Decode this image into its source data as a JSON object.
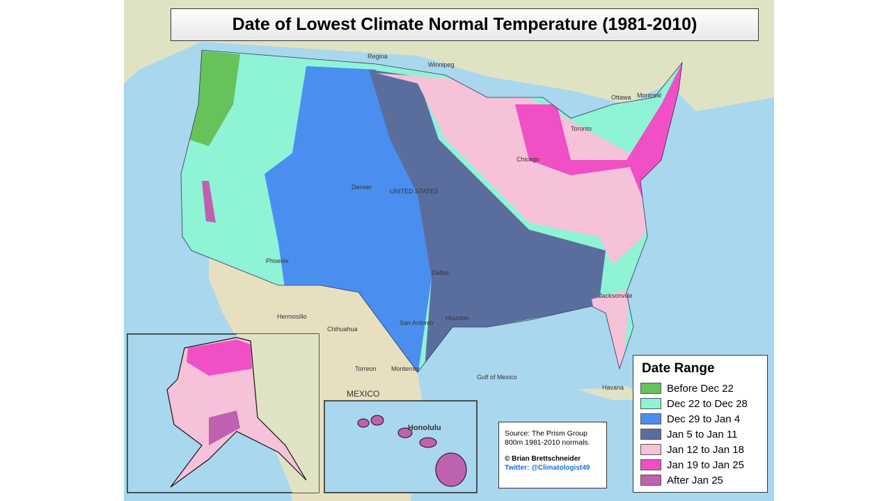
{
  "title": "Date of Lowest Climate Normal Temperature (1981-2010)",
  "legend": {
    "title": "Date Range",
    "items": [
      {
        "label": "Before Dec 22",
        "color": "#66c25a"
      },
      {
        "label": "Dec 22 to Dec 28",
        "color": "#8ff3d6"
      },
      {
        "label": "Dec 29 to Jan 4",
        "color": "#4a8ff0"
      },
      {
        "label": "Jan 5 to Jan 11",
        "color": "#5a6e9e"
      },
      {
        "label": "Jan 12 to Jan 18",
        "color": "#f5c2da"
      },
      {
        "label": "Jan 19 to Jan 25",
        "color": "#f04fc6"
      },
      {
        "label": "After Jan 25",
        "color": "#c060b0"
      }
    ]
  },
  "source": {
    "text": "Source: The Prism Group 800m 1981-2010 normals.",
    "credit": "© Brian Brettschneider",
    "twitter": "Twitter: @Climatologist49"
  },
  "places": {
    "united_states": "UNITED STATES",
    "mexico": "MEXICO",
    "gulf": "Gulf of Mexico",
    "havana": "Havana",
    "honolulu": "Honolulu",
    "hermosillo": "Hermosillo",
    "chihuahua": "Chihuahua",
    "torreon": "Torreon",
    "monterrey": "Monterrey",
    "san_antonio": "San Antonio",
    "houston": "Houston",
    "dallas": "Dallas",
    "jacksonville": "Jacksonville",
    "chicago": "Chicago",
    "toronto": "Toronto",
    "ottawa": "Ottawa",
    "montreal": "Montreal",
    "denver": "Denver",
    "phoenix": "Phoenix",
    "winnipeg": "Winnipeg",
    "regina": "Regina"
  }
}
